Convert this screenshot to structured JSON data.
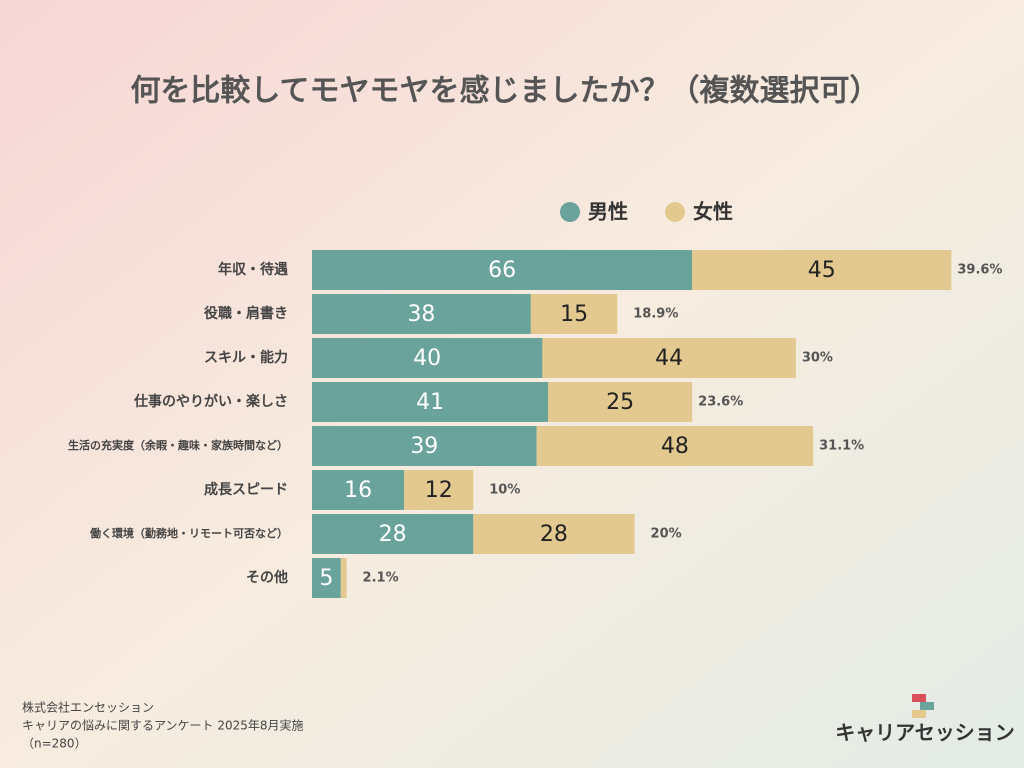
{
  "chart_data": {
    "type": "stacked-bar-horizontal",
    "title": "何を比較してモヤモヤを感じましたか？（複数選択可）",
    "categories": [
      "年収・待遇",
      "役職・肩書き",
      "スキル・能力",
      "仕事のやりがい・楽しさ",
      "生活の充実度（余暇・趣味・家族時間など）",
      "成長スピード",
      "働く環境（勤務地・リモート可否など）",
      "その他"
    ],
    "series": [
      {
        "name": "男性",
        "color": "#6aa39b",
        "values": [
          66,
          38,
          40,
          41,
          39,
          16,
          28,
          5
        ]
      },
      {
        "name": "女性",
        "color": "#e3c98f",
        "values": [
          45,
          15,
          44,
          25,
          48,
          12,
          28,
          1
        ]
      }
    ],
    "shares": [
      39.6,
      18.9,
      30,
      23.6,
      31.1,
      10,
      20,
      2.1
    ],
    "share_labels": [
      "39.6%",
      "18.9%",
      "30%",
      "23.6%",
      "31.1%",
      "10%",
      "20%",
      "2.1%"
    ]
  },
  "footer": [
    "株式会社エンセッション",
    "キャリアの悩みに関するアンケート 2025年8月実施",
    "（n=280）"
  ],
  "logo": "キャリアセッション"
}
